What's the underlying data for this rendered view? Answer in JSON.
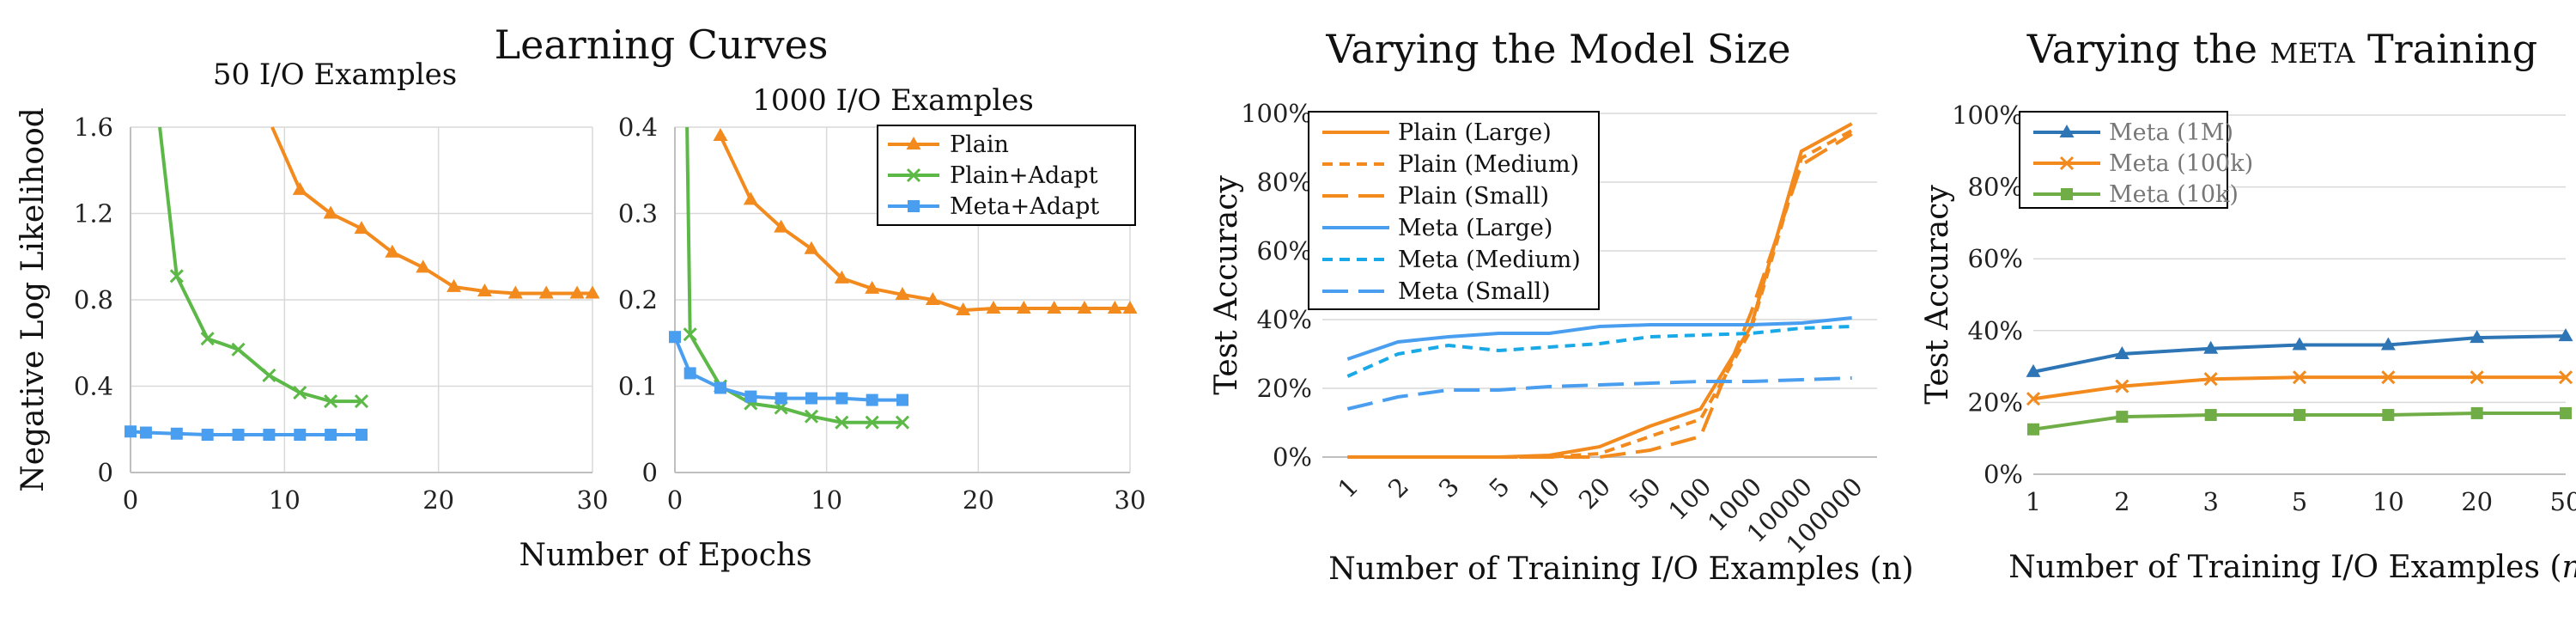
{
  "titles": {
    "left": "Learning Curves",
    "middle": "Varying the Model Size",
    "right_prefix": "Varying the",
    "right_smallcaps": "meta",
    "right_suffix": "Training"
  },
  "colors": {
    "plain": "#F28A1E",
    "plain_adapt": "#5DB947",
    "meta_adapt": "#4A9EF0",
    "meta_large": "#4A9EF0",
    "meta_medium": "#19A9E6",
    "meta_1m": "#2E75B6",
    "meta_100k": "#F28A1E",
    "meta_10k": "#70AD47"
  },
  "chart_data": [
    {
      "type": "line",
      "subtitle": "50 I/O Examples",
      "ylabel": "Negative Log Likelihood",
      "shared_xlabel": "Number of Epochs",
      "xlim": [
        0,
        30
      ],
      "ylim": [
        0,
        1.6
      ],
      "xticks": [
        "0",
        "10",
        "20",
        "30"
      ],
      "yticks": [
        "0",
        "0.4",
        "0.8",
        "1.2",
        "1.6"
      ],
      "grid": true,
      "series": [
        {
          "name": "Plain",
          "marker": "triangle",
          "x": [
            9.2,
            11,
            13,
            15,
            17,
            19,
            21,
            23,
            25,
            27,
            29,
            30
          ],
          "y": [
            1.6,
            1.31,
            1.2,
            1.13,
            1.02,
            0.95,
            0.86,
            0.84,
            0.83,
            0.83,
            0.83,
            0.83
          ]
        },
        {
          "name": "Plain+Adapt",
          "marker": "x",
          "x": [
            1.9,
            3,
            5,
            7,
            9,
            11,
            13,
            15
          ],
          "y": [
            1.6,
            0.91,
            0.62,
            0.57,
            0.45,
            0.37,
            0.33,
            0.33
          ]
        },
        {
          "name": "Meta+Adapt",
          "marker": "square",
          "x": [
            0,
            1,
            3,
            5,
            7,
            9,
            11,
            13,
            15
          ],
          "y": [
            0.19,
            0.185,
            0.18,
            0.175,
            0.175,
            0.175,
            0.175,
            0.175,
            0.175
          ]
        }
      ]
    },
    {
      "type": "line",
      "subtitle": "1000 I/O Examples",
      "xlim": [
        0,
        30
      ],
      "ylim": [
        0,
        0.4
      ],
      "xticks": [
        "0",
        "10",
        "20",
        "30"
      ],
      "yticks": [
        "0",
        "0.1",
        "0.2",
        "0.3",
        "0.4"
      ],
      "grid": true,
      "legend": "top-right",
      "series": [
        {
          "name": "Plain",
          "marker": "triangle",
          "x": [
            3,
            5,
            7,
            9,
            11,
            13,
            15,
            17,
            19,
            21,
            23,
            25,
            27,
            29,
            30
          ],
          "y": [
            0.39,
            0.316,
            0.284,
            0.259,
            0.225,
            0.213,
            0.206,
            0.2,
            0.188,
            0.19,
            0.19,
            0.19,
            0.19,
            0.19,
            0.19
          ]
        },
        {
          "name": "Plain+Adapt",
          "marker": "x",
          "x": [
            0.8,
            1,
            3,
            5,
            7,
            9,
            11,
            13,
            15
          ],
          "y": [
            0.4,
            0.16,
            0.1,
            0.08,
            0.075,
            0.065,
            0.058,
            0.058,
            0.058
          ]
        },
        {
          "name": "Meta+Adapt",
          "marker": "square",
          "x": [
            0,
            1,
            3,
            5,
            7,
            9,
            11,
            13,
            15
          ],
          "y": [
            0.157,
            0.115,
            0.098,
            0.088,
            0.086,
            0.086,
            0.086,
            0.084,
            0.084
          ]
        }
      ]
    },
    {
      "type": "line",
      "xlabel": "Number of Training I/O Examples (n)",
      "ylabel": "Test Accuracy",
      "categories": [
        "1",
        "2",
        "3",
        "5",
        "10",
        "20",
        "50",
        "100",
        "1000",
        "10000",
        "100000"
      ],
      "ylim": [
        0,
        100
      ],
      "yticks": [
        "0%",
        "20%",
        "40%",
        "60%",
        "80%",
        "100%"
      ],
      "grid": true,
      "legend": "top-left",
      "series": [
        {
          "name": "Plain (Large)",
          "dash": "solid",
          "color": "plain",
          "values": [
            0,
            0,
            0,
            0,
            0.5,
            3,
            9,
            14,
            38,
            89,
            97
          ]
        },
        {
          "name": "Plain (Medium)",
          "dash": "short",
          "color": "plain",
          "values": [
            0,
            0,
            0,
            0,
            0,
            1,
            6,
            11,
            37,
            87,
            95
          ]
        },
        {
          "name": "Plain (Small)",
          "dash": "long",
          "color": "plain",
          "values": [
            0,
            0,
            0,
            0,
            0,
            0,
            2,
            6,
            42,
            85,
            94
          ]
        },
        {
          "name": "Meta (Large)",
          "dash": "solid",
          "color": "meta_large",
          "values": [
            28.5,
            33.5,
            35,
            36,
            36,
            38,
            38.5,
            38.5,
            38.5,
            39,
            40.5
          ]
        },
        {
          "name": "Meta (Medium)",
          "dash": "short",
          "color": "meta_medium",
          "values": [
            23.5,
            30,
            32.5,
            31,
            32,
            33,
            35,
            35.5,
            36,
            37.5,
            38
          ]
        },
        {
          "name": "Meta (Small)",
          "dash": "long",
          "color": "meta_large",
          "values": [
            14,
            17.5,
            19.5,
            19.5,
            20.5,
            21,
            21.5,
            22,
            22,
            22.5,
            23
          ]
        }
      ]
    },
    {
      "type": "line",
      "xlabel_prefix": "Number of Training I/O Examples (",
      "xlabel_var": "n",
      "xlabel_suffix": ")",
      "ylabel": "Test Accuracy",
      "categories": [
        "1",
        "2",
        "3",
        "5",
        "10",
        "20",
        "50"
      ],
      "ylim": [
        0,
        100
      ],
      "yticks": [
        "0%",
        "20%",
        "40%",
        "60%",
        "80%",
        "100%"
      ],
      "grid": true,
      "legend": "top-left",
      "series": [
        {
          "name": "Meta (1M)",
          "marker": "triangle",
          "color": "meta_1m",
          "values": [
            28.5,
            33.5,
            35,
            36,
            36,
            38,
            38.5
          ]
        },
        {
          "name": "Meta (100k)",
          "marker": "x",
          "color": "meta_100k",
          "values": [
            21,
            24.5,
            26.5,
            27,
            27,
            27,
            27
          ]
        },
        {
          "name": "Meta (10k)",
          "marker": "square",
          "color": "meta_10k",
          "values": [
            12.5,
            16,
            16.5,
            16.5,
            16.5,
            17,
            17
          ]
        }
      ]
    }
  ]
}
